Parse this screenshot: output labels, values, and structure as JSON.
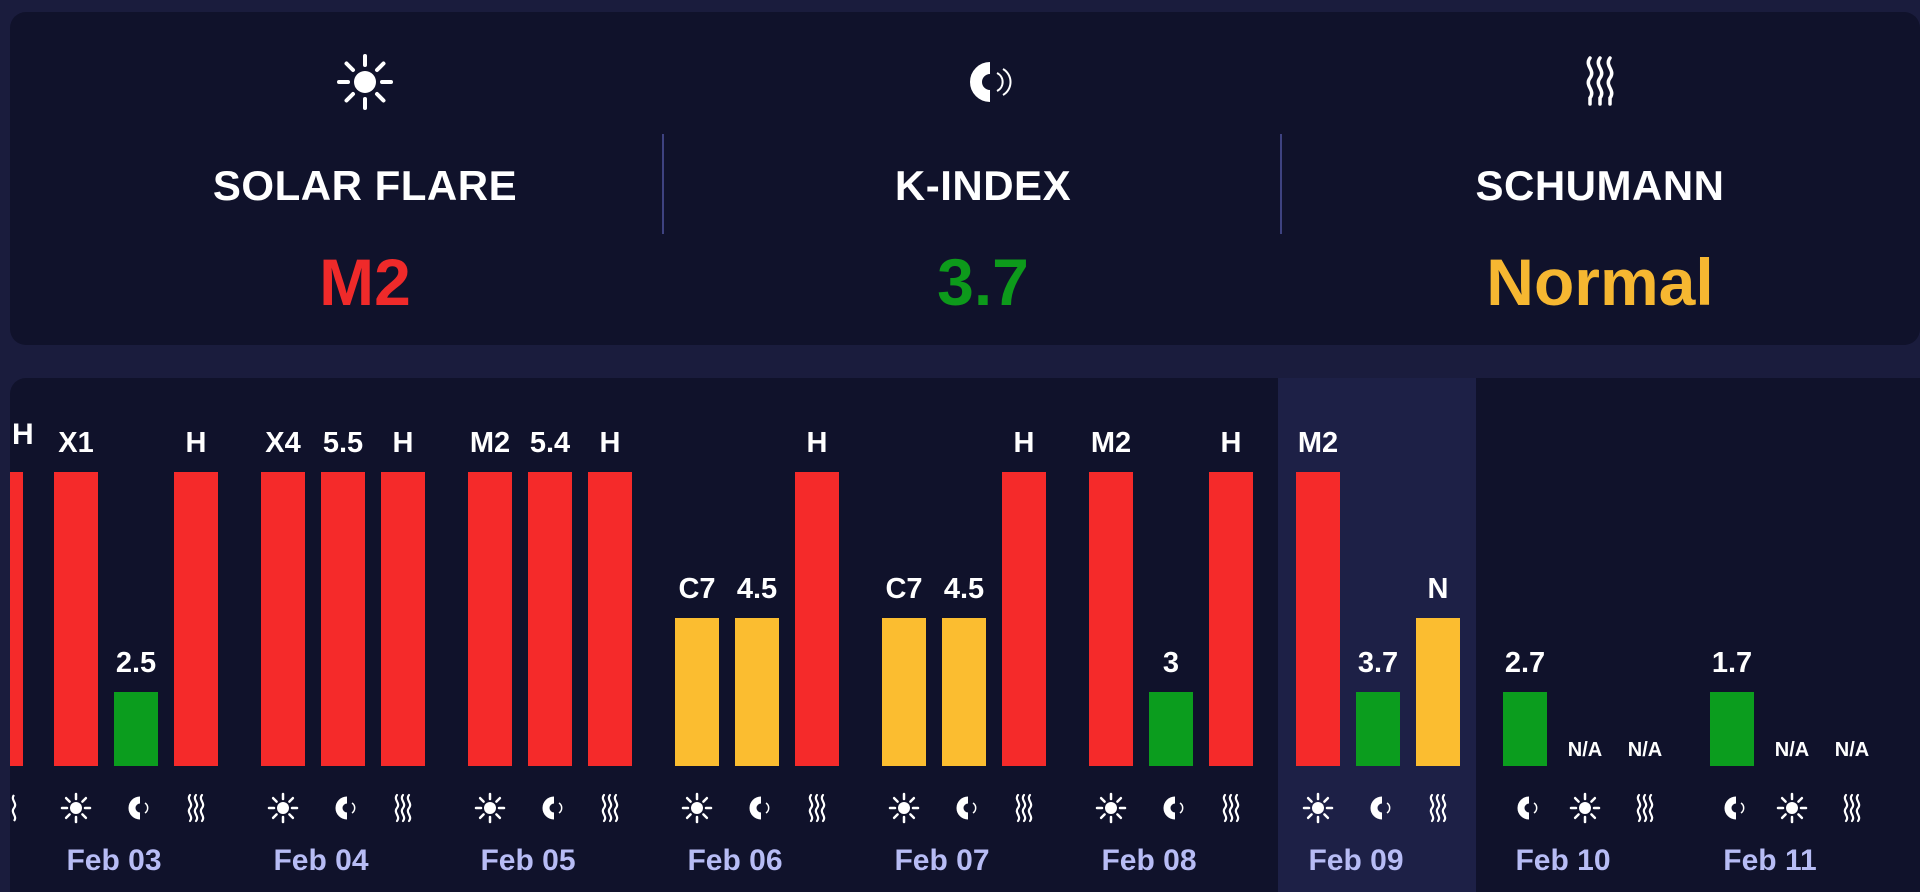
{
  "summary": {
    "items": [
      {
        "label": "SOLAR FLARE",
        "value": "M2",
        "color": "#ef2a2a",
        "icon": "sun-icon"
      },
      {
        "label": "K-INDEX",
        "value": "3.7",
        "color": "#0d9a1b",
        "icon": "magnet-icon"
      },
      {
        "label": "SCHUMANN",
        "value": "Normal",
        "color": "#f6b731",
        "icon": "waves-icon"
      }
    ]
  },
  "colors": {
    "red": "#f52a2a",
    "green": "#0b9d1e",
    "yellow": "#fbbd30",
    "date_text": "#b7bcf5",
    "highlight_bg": "#1d2046"
  },
  "chart_data": {
    "type": "bar",
    "highlight": "Feb 09",
    "days": [
      {
        "date": "Feb 03",
        "bars": [
          {
            "kind": "flare",
            "label": "X1",
            "level": 1.0,
            "color": "red"
          },
          {
            "kind": "kindex",
            "label": "2.5",
            "level": 0.25,
            "color": "green"
          },
          {
            "kind": "schumann",
            "label": "H",
            "level": 1.0,
            "color": "red"
          }
        ]
      },
      {
        "date": "Feb 04",
        "bars": [
          {
            "kind": "flare",
            "label": "X4",
            "level": 1.0,
            "color": "red"
          },
          {
            "kind": "kindex",
            "label": "5.5",
            "level": 1.0,
            "color": "red"
          },
          {
            "kind": "schumann",
            "label": "H",
            "level": 1.0,
            "color": "red"
          }
        ]
      },
      {
        "date": "Feb 05",
        "bars": [
          {
            "kind": "flare",
            "label": "M2",
            "level": 1.0,
            "color": "red"
          },
          {
            "kind": "kindex",
            "label": "5.4",
            "level": 1.0,
            "color": "red"
          },
          {
            "kind": "schumann",
            "label": "H",
            "level": 1.0,
            "color": "red"
          }
        ]
      },
      {
        "date": "Feb 06",
        "bars": [
          {
            "kind": "flare",
            "label": "C7",
            "level": 0.5,
            "color": "yellow"
          },
          {
            "kind": "kindex",
            "label": "4.5",
            "level": 0.5,
            "color": "yellow"
          },
          {
            "kind": "schumann",
            "label": "H",
            "level": 1.0,
            "color": "red"
          }
        ]
      },
      {
        "date": "Feb 07",
        "bars": [
          {
            "kind": "flare",
            "label": "C7",
            "level": 0.5,
            "color": "yellow"
          },
          {
            "kind": "kindex",
            "label": "4.5",
            "level": 0.5,
            "color": "yellow"
          },
          {
            "kind": "schumann",
            "label": "H",
            "level": 1.0,
            "color": "red"
          }
        ]
      },
      {
        "date": "Feb 08",
        "bars": [
          {
            "kind": "flare",
            "label": "M2",
            "level": 1.0,
            "color": "red"
          },
          {
            "kind": "kindex",
            "label": "3",
            "level": 0.25,
            "color": "green"
          },
          {
            "kind": "schumann",
            "label": "H",
            "level": 1.0,
            "color": "red"
          }
        ]
      },
      {
        "date": "Feb 09",
        "bars": [
          {
            "kind": "flare",
            "label": "M2",
            "level": 1.0,
            "color": "red"
          },
          {
            "kind": "kindex",
            "label": "3.7",
            "level": 0.25,
            "color": "green"
          },
          {
            "kind": "schumann",
            "label": "N",
            "level": 0.5,
            "color": "yellow"
          }
        ]
      },
      {
        "date": "Feb 10",
        "bars": [
          {
            "kind": "kindex",
            "label": "2.7",
            "level": 0.25,
            "color": "green"
          },
          {
            "kind": "flare",
            "label": "N/A",
            "level": 0,
            "color": null
          },
          {
            "kind": "schumann",
            "label": "N/A",
            "level": 0,
            "color": null
          }
        ]
      },
      {
        "date": "Feb 11",
        "bars": [
          {
            "kind": "kindex",
            "label": "1.7",
            "level": 0.25,
            "color": "green"
          },
          {
            "kind": "flare",
            "label": "N/A",
            "level": 0,
            "color": null
          },
          {
            "kind": "schumann",
            "label": "N/A",
            "level": 0,
            "color": null
          }
        ]
      }
    ]
  }
}
